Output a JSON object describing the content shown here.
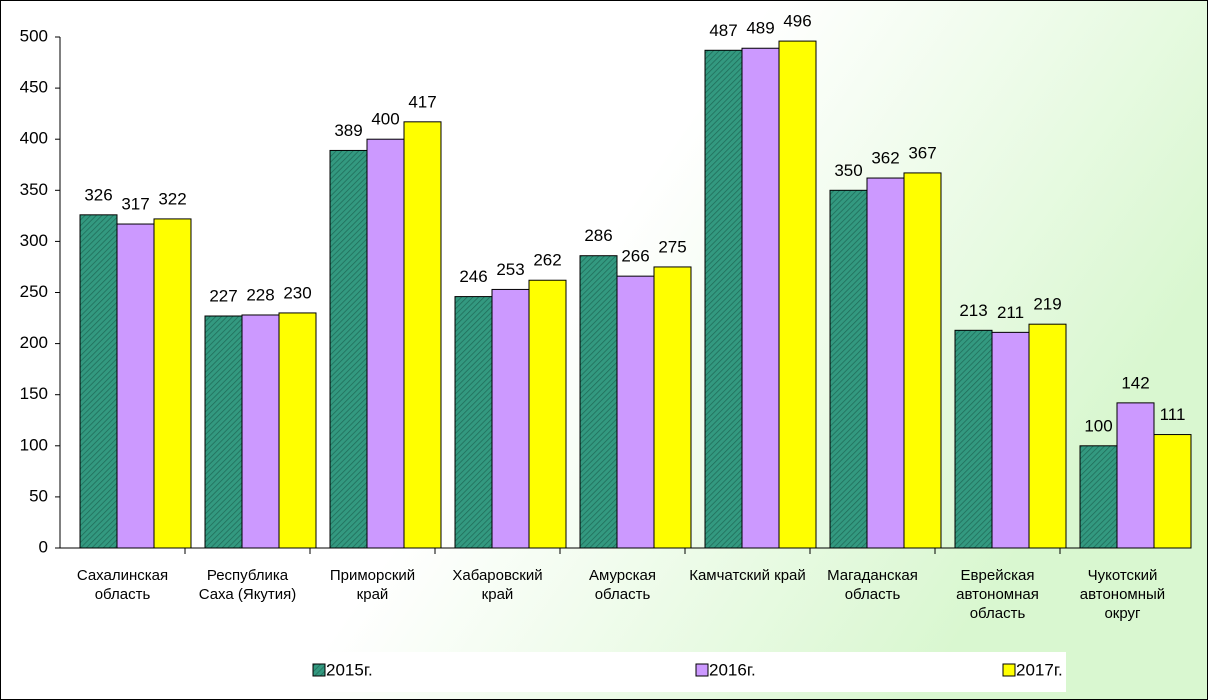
{
  "chart_data": {
    "type": "bar",
    "categories": [
      "Сахалинская область",
      "Республика Саха (Якутия)",
      "Приморский край",
      "Хабаровский край",
      "Амурская область",
      "Камчатский край",
      "Магаданская область",
      "Еврейская автономная область",
      "Чукотский автономный округ"
    ],
    "series": [
      {
        "name": "2015г.",
        "color": "#339980",
        "values": [
          326,
          227,
          389,
          246,
          286,
          487,
          350,
          213,
          100
        ]
      },
      {
        "name": "2016г.",
        "color": "#cc99ff",
        "values": [
          317,
          228,
          400,
          253,
          266,
          489,
          362,
          211,
          142
        ]
      },
      {
        "name": "2017г.",
        "color": "#ffff00",
        "values": [
          322,
          230,
          417,
          262,
          275,
          496,
          367,
          219,
          111
        ]
      }
    ],
    "ylim": [
      0,
      500
    ],
    "yticks": [
      0,
      50,
      100,
      150,
      200,
      250,
      300,
      350,
      400,
      450,
      500
    ],
    "grid": false,
    "legend": "bottom"
  }
}
